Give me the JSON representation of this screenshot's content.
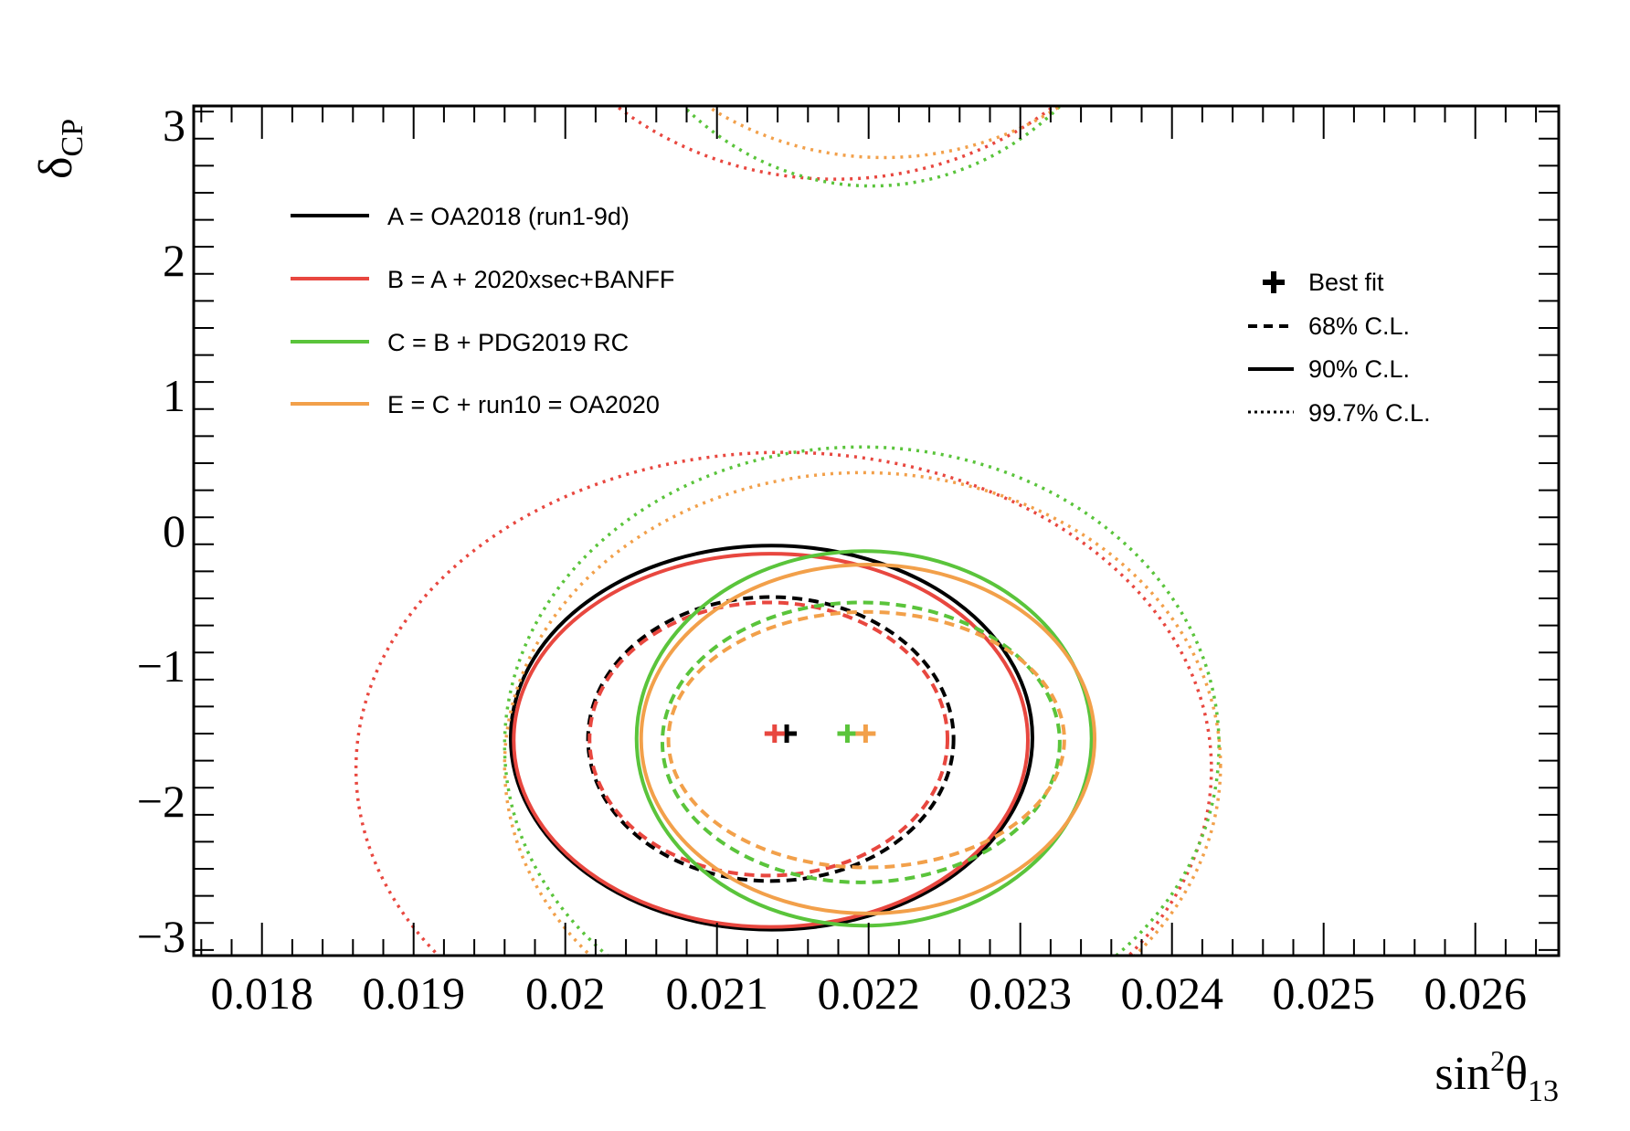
{
  "chart_data": {
    "type": "contour",
    "xlabel": {
      "base": "sin",
      "sup": "2",
      "mid": "θ",
      "sub": "13"
    },
    "ylabel": {
      "base": "δ",
      "sub": "CP"
    },
    "xlim": [
      0.01755,
      0.02655
    ],
    "ylim": [
      -3.1416,
      3.1416
    ],
    "xticks": [
      {
        "v": 0.018,
        "label": "0.018"
      },
      {
        "v": 0.019,
        "label": "0.019"
      },
      {
        "v": 0.02,
        "label": "0.02"
      },
      {
        "v": 0.021,
        "label": "0.021"
      },
      {
        "v": 0.022,
        "label": "0.022"
      },
      {
        "v": 0.023,
        "label": "0.023"
      },
      {
        "v": 0.024,
        "label": "0.024"
      },
      {
        "v": 0.025,
        "label": "0.025"
      },
      {
        "v": 0.026,
        "label": "0.026"
      }
    ],
    "yticks": [
      {
        "v": -3,
        "label": "−3"
      },
      {
        "v": -2,
        "label": "−2"
      },
      {
        "v": -1,
        "label": "−1"
      },
      {
        "v": 0,
        "label": "0"
      },
      {
        "v": 1,
        "label": "1"
      },
      {
        "v": 2,
        "label": "2"
      },
      {
        "v": 3,
        "label": "3"
      }
    ],
    "grid": false,
    "series": [
      {
        "name": "A = OA2018 (run1-9d)",
        "color": "#000000",
        "best_fit": [
          0.02146,
          -1.5
        ],
        "contours": [
          {
            "level": "68% C.L.",
            "style": "dashed",
            "x": [
              0.02015,
              0.02256
            ],
            "y": [
              -2.59,
              -0.49
            ]
          },
          {
            "level": "90% C.L.",
            "style": "solid",
            "x": [
              0.01964,
              0.02308
            ],
            "y": [
              -2.95,
              -0.11
            ]
          }
        ]
      },
      {
        "name": "B = A + 2020xsec+BANFF",
        "color": "#e8473f",
        "best_fit": [
          0.02138,
          -1.5
        ],
        "contours": [
          {
            "level": "68% C.L.",
            "style": "dashed",
            "x": [
              0.02016,
              0.02252
            ],
            "y": [
              -2.55,
              -0.53
            ]
          },
          {
            "level": "90% C.L.",
            "style": "solid",
            "x": [
              0.01966,
              0.02305
            ],
            "y": [
              -2.93,
              -0.17
            ]
          },
          {
            "level": "99.7% C.L.",
            "style": "dotted",
            "x": [
              0.01862,
              0.02426
            ],
            "y": [
              -4.1,
              0.58
            ]
          }
        ]
      },
      {
        "name": "C = B + PDG2019 RC",
        "color": "#5ac43b",
        "best_fit": [
          0.02186,
          -1.5
        ],
        "contours": [
          {
            "level": "68% C.L.",
            "style": "dashed",
            "x": [
              0.02064,
              0.02326
            ],
            "y": [
              -2.6,
              -0.53
            ]
          },
          {
            "level": "90% C.L.",
            "style": "solid",
            "x": [
              0.02047,
              0.02347
            ],
            "y": [
              -2.92,
              -0.15
            ]
          },
          {
            "level": "99.7% C.L.",
            "style": "dotted",
            "x": [
              0.0196,
              0.02431
            ],
            "y": [
              -3.8,
              0.62
            ]
          }
        ]
      },
      {
        "name": "E = C + run10 = OA2020",
        "color": "#f2a04a",
        "best_fit": [
          0.02198,
          -1.5
        ],
        "contours": [
          {
            "level": "68% C.L.",
            "style": "dashed",
            "x": [
              0.02068,
              0.02329
            ],
            "y": [
              -2.49,
              -0.6
            ]
          },
          {
            "level": "90% C.L.",
            "style": "solid",
            "x": [
              0.0205,
              0.02349
            ],
            "y": [
              -2.83,
              -0.25
            ]
          },
          {
            "level": "99.7% C.L.",
            "style": "dotted",
            "x": [
              0.0196,
              0.02432
            ],
            "y": [
              -3.9,
              0.43
            ]
          }
        ]
      }
    ],
    "wrap_arcs": [
      {
        "series": 1,
        "center": [
          0.02178,
          4.95
        ],
        "radius": [
          0.00226,
          2.35
        ]
      },
      {
        "series": 2,
        "center": [
          0.02202,
          4.95
        ],
        "radius": [
          0.00189,
          2.4
        ]
      },
      {
        "series": 3,
        "center": [
          0.0221,
          4.8
        ],
        "radius": [
          0.002,
          2.04
        ]
      }
    ],
    "legend_series_placement": "top-left",
    "legend_styles": [
      {
        "label": "Best fit",
        "style": "cross"
      },
      {
        "label": "68% C.L.",
        "style": "dashed"
      },
      {
        "label": "90% C.L.",
        "style": "solid"
      },
      {
        "label": "99.7% C.L.",
        "style": "dotted"
      }
    ],
    "legend_styles_placement": "top-right"
  }
}
